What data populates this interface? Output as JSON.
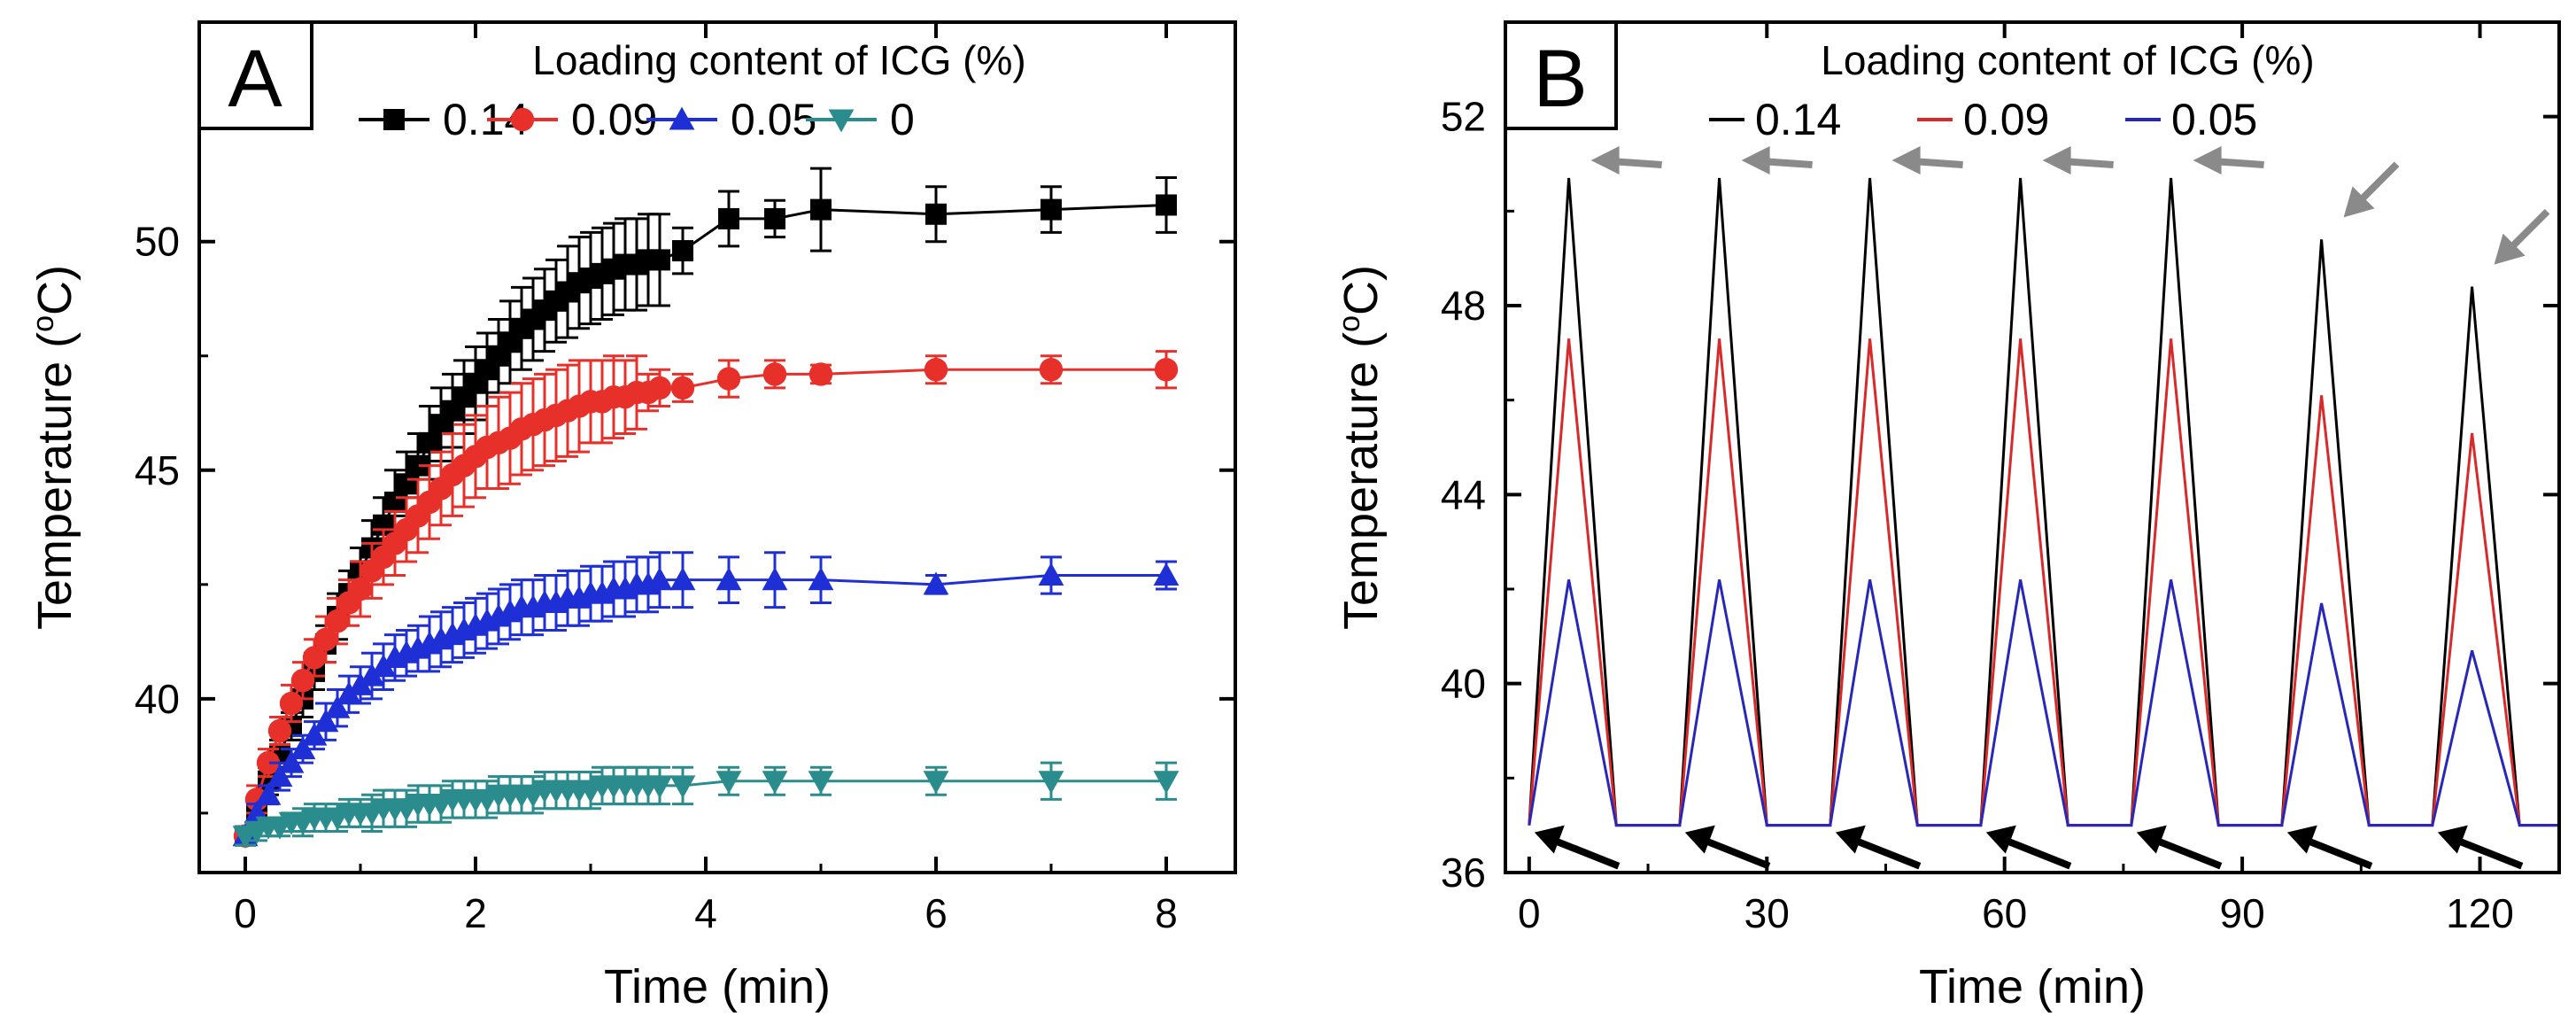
{
  "figure": {
    "panels": [
      "A",
      "B"
    ]
  },
  "chart_data": [
    {
      "panel": "A",
      "type": "line",
      "title": "",
      "xlabel": "Time (min)",
      "ylabel": "Temperature (",
      "ylabel_sup": "o",
      "ylabel_end": "C)",
      "xlim": [
        -0.4,
        8.6
      ],
      "ylim": [
        36.2,
        54.8
      ],
      "xticks": [
        0,
        2,
        4,
        6,
        8
      ],
      "yticks": [
        40,
        45,
        50
      ],
      "legend_title": "Loading content of ICG (%)",
      "legend_position": "top",
      "series": [
        {
          "name": "0.14",
          "color": "#000000",
          "marker": "square",
          "x": [
            0,
            0.1,
            0.2,
            0.3,
            0.4,
            0.5,
            0.6,
            0.7,
            0.8,
            0.9,
            1.0,
            1.1,
            1.2,
            1.3,
            1.4,
            1.5,
            1.6,
            1.7,
            1.8,
            1.9,
            2.0,
            2.1,
            2.2,
            2.3,
            2.4,
            2.5,
            2.6,
            2.7,
            2.8,
            2.9,
            3.0,
            3.1,
            3.2,
            3.3,
            3.4,
            3.5,
            3.6,
            3.8,
            4.2,
            4.6,
            5.0,
            6.0,
            7.0,
            8.0
          ],
          "y": [
            37.0,
            37.6,
            38.2,
            38.8,
            39.4,
            40.0,
            40.6,
            41.2,
            41.8,
            42.3,
            42.8,
            43.3,
            43.8,
            44.3,
            44.7,
            45.1,
            45.6,
            46.0,
            46.3,
            46.6,
            46.9,
            47.2,
            47.5,
            47.8,
            48.1,
            48.3,
            48.5,
            48.7,
            48.9,
            49.1,
            49.2,
            49.3,
            49.4,
            49.5,
            49.5,
            49.6,
            49.6,
            49.8,
            50.5,
            50.5,
            50.7,
            50.6,
            50.7,
            50.8
          ],
          "err": [
            0.2,
            0.2,
            0.3,
            0.3,
            0.3,
            0.4,
            0.4,
            0.4,
            0.5,
            0.5,
            0.5,
            0.6,
            0.6,
            0.7,
            0.7,
            0.7,
            0.8,
            0.8,
            0.8,
            0.8,
            0.8,
            0.8,
            0.8,
            0.9,
            0.9,
            0.9,
            0.9,
            0.9,
            1.0,
            1.0,
            1.0,
            1.0,
            1.0,
            1.0,
            1.0,
            1.0,
            1.0,
            0.5,
            0.6,
            0.4,
            0.9,
            0.6,
            0.5,
            0.6
          ]
        },
        {
          "name": "0.09",
          "color": "#e8302a",
          "marker": "circle",
          "x": [
            0,
            0.1,
            0.2,
            0.3,
            0.4,
            0.5,
            0.6,
            0.7,
            0.8,
            0.9,
            1.0,
            1.1,
            1.2,
            1.3,
            1.4,
            1.5,
            1.6,
            1.7,
            1.8,
            1.9,
            2.0,
            2.1,
            2.2,
            2.3,
            2.4,
            2.5,
            2.6,
            2.7,
            2.8,
            2.9,
            3.0,
            3.1,
            3.2,
            3.3,
            3.4,
            3.5,
            3.6,
            3.8,
            4.2,
            4.6,
            5.0,
            6.0,
            7.0,
            8.0
          ],
          "y": [
            37.0,
            37.8,
            38.6,
            39.3,
            39.9,
            40.4,
            40.9,
            41.3,
            41.7,
            42.1,
            42.4,
            42.8,
            43.1,
            43.4,
            43.7,
            44.0,
            44.3,
            44.6,
            44.9,
            45.1,
            45.3,
            45.5,
            45.6,
            45.7,
            45.9,
            46.0,
            46.1,
            46.2,
            46.3,
            46.4,
            46.5,
            46.5,
            46.6,
            46.6,
            46.7,
            46.7,
            46.8,
            46.8,
            47.0,
            47.1,
            47.1,
            47.2,
            47.2,
            47.2
          ],
          "err": [
            0.2,
            0.3,
            0.3,
            0.3,
            0.4,
            0.4,
            0.4,
            0.5,
            0.5,
            0.5,
            0.6,
            0.6,
            0.6,
            0.7,
            0.7,
            0.8,
            0.8,
            0.8,
            0.9,
            0.9,
            0.9,
            0.9,
            1.0,
            1.0,
            1.0,
            1.0,
            1.0,
            1.0,
            1.0,
            1.0,
            0.9,
            0.9,
            0.9,
            0.8,
            0.8,
            0.4,
            0.4,
            0.3,
            0.4,
            0.3,
            0.2,
            0.3,
            0.3,
            0.4
          ]
        },
        {
          "name": "0.05",
          "color": "#1f2fd6",
          "marker": "triangle-up",
          "x": [
            0,
            0.1,
            0.2,
            0.3,
            0.4,
            0.5,
            0.6,
            0.7,
            0.8,
            0.9,
            1.0,
            1.1,
            1.2,
            1.3,
            1.4,
            1.5,
            1.6,
            1.7,
            1.8,
            1.9,
            2.0,
            2.1,
            2.2,
            2.3,
            2.4,
            2.5,
            2.6,
            2.7,
            2.8,
            2.9,
            3.0,
            3.1,
            3.2,
            3.3,
            3.4,
            3.5,
            3.6,
            3.8,
            4.2,
            4.6,
            5.0,
            6.0,
            7.0,
            8.0
          ],
          "y": [
            37.0,
            37.5,
            37.9,
            38.3,
            38.6,
            38.9,
            39.2,
            39.5,
            39.8,
            40.1,
            40.3,
            40.5,
            40.7,
            40.9,
            41.0,
            41.1,
            41.2,
            41.3,
            41.4,
            41.5,
            41.6,
            41.7,
            41.8,
            41.9,
            42.0,
            42.0,
            42.1,
            42.1,
            42.2,
            42.2,
            42.3,
            42.3,
            42.4,
            42.4,
            42.5,
            42.5,
            42.6,
            42.6,
            42.6,
            42.6,
            42.6,
            42.5,
            42.7,
            42.7
          ],
          "err": [
            0.2,
            0.2,
            0.2,
            0.3,
            0.3,
            0.3,
            0.3,
            0.4,
            0.4,
            0.4,
            0.4,
            0.5,
            0.5,
            0.5,
            0.5,
            0.5,
            0.6,
            0.6,
            0.6,
            0.6,
            0.6,
            0.6,
            0.6,
            0.6,
            0.6,
            0.6,
            0.6,
            0.6,
            0.6,
            0.6,
            0.6,
            0.6,
            0.6,
            0.6,
            0.6,
            0.6,
            0.6,
            0.6,
            0.5,
            0.6,
            0.5,
            0.2,
            0.4,
            0.3
          ]
        },
        {
          "name": "0",
          "color": "#2a8c8c",
          "marker": "triangle-down",
          "x": [
            0,
            0.1,
            0.2,
            0.3,
            0.4,
            0.5,
            0.6,
            0.7,
            0.8,
            0.9,
            1.0,
            1.1,
            1.2,
            1.3,
            1.4,
            1.5,
            1.6,
            1.7,
            1.8,
            1.9,
            2.0,
            2.1,
            2.2,
            2.3,
            2.4,
            2.5,
            2.6,
            2.7,
            2.8,
            2.9,
            3.0,
            3.1,
            3.2,
            3.3,
            3.4,
            3.5,
            3.6,
            3.8,
            4.2,
            4.6,
            5.0,
            6.0,
            7.0,
            8.0
          ],
          "y": [
            37.0,
            37.1,
            37.2,
            37.2,
            37.3,
            37.3,
            37.4,
            37.4,
            37.4,
            37.5,
            37.5,
            37.5,
            37.6,
            37.6,
            37.6,
            37.7,
            37.7,
            37.7,
            37.8,
            37.8,
            37.8,
            37.8,
            37.9,
            37.9,
            37.9,
            37.9,
            38.0,
            38.0,
            38.0,
            38.0,
            38.0,
            38.1,
            38.1,
            38.1,
            38.1,
            38.1,
            38.1,
            38.1,
            38.2,
            38.2,
            38.2,
            38.2,
            38.2,
            38.2
          ],
          "err": [
            0.2,
            0.2,
            0.2,
            0.2,
            0.2,
            0.3,
            0.3,
            0.3,
            0.3,
            0.3,
            0.3,
            0.4,
            0.4,
            0.4,
            0.4,
            0.4,
            0.4,
            0.4,
            0.4,
            0.4,
            0.4,
            0.4,
            0.4,
            0.4,
            0.4,
            0.4,
            0.4,
            0.4,
            0.4,
            0.4,
            0.4,
            0.4,
            0.4,
            0.4,
            0.4,
            0.4,
            0.4,
            0.4,
            0.3,
            0.3,
            0.3,
            0.3,
            0.4,
            0.4
          ]
        }
      ]
    },
    {
      "panel": "B",
      "type": "line",
      "title": "",
      "xlabel": "Time (min)",
      "ylabel": "Temperature (",
      "ylabel_sup": "o",
      "ylabel_end": "C)",
      "xlim": [
        -3,
        130
      ],
      "ylim": [
        36,
        54
      ],
      "xticks": [
        0,
        30,
        60,
        90,
        120
      ],
      "yticks": [
        36,
        40,
        44,
        48,
        52
      ],
      "legend_title": "Loading content of ICG (%)",
      "legend_position": "top",
      "cycles": {
        "laser_on_min": [
          0,
          19,
          38,
          57,
          76,
          95,
          114
        ],
        "heating_min": 5,
        "cooling_min": 6,
        "baseline": 37.0
      },
      "series": [
        {
          "name": "0.14",
          "color": "#000000",
          "peaks": [
            50.7,
            50.7,
            50.7,
            50.7,
            50.7,
            49.4,
            48.4
          ]
        },
        {
          "name": "0.09",
          "color": "#d82a2a",
          "peaks": [
            47.3,
            47.3,
            47.3,
            47.3,
            47.3,
            46.1,
            45.3
          ]
        },
        {
          "name": "0.05",
          "color": "#2828b8",
          "peaks": [
            42.2,
            42.2,
            42.2,
            42.2,
            42.2,
            41.7,
            40.7
          ]
        }
      ],
      "annotations": {
        "peak_arrows_color": "#8a8a8a",
        "start_arrows_color": "#000000"
      }
    }
  ]
}
